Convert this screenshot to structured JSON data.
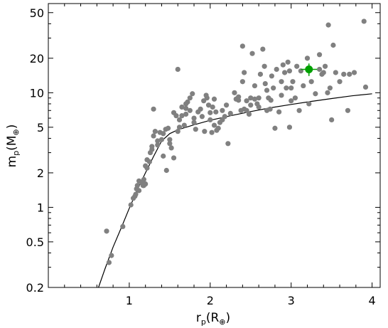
{
  "chart_data": {
    "type": "scatter",
    "title": "",
    "xlabel": {
      "main": "r",
      "sub": "p",
      "unit_open": "(R",
      "unit_sub": "⊕",
      "unit_close": ")"
    },
    "ylabel": {
      "main": "m",
      "sub": "p",
      "unit_open": "(M",
      "unit_sub": "⊕",
      "unit_close": ")"
    },
    "xlim": [
      0,
      4.1
    ],
    "ylim": [
      0.2,
      60
    ],
    "yscale": "log",
    "x_ticks": [
      1,
      2,
      3,
      4
    ],
    "x_tick_labels": [
      "1",
      "2",
      "3",
      "4"
    ],
    "y_ticks": [
      0.2,
      0.5,
      1,
      2,
      5,
      10,
      20,
      50
    ],
    "y_tick_labels": [
      "0.2",
      "0.5",
      "1",
      "2",
      "5",
      "10",
      "20",
      "50"
    ],
    "grid": false,
    "legend": "none",
    "colors": {
      "points": "#808080",
      "highlight": "#00a000",
      "curve": "#000000",
      "axes": "#000000"
    },
    "series": [
      {
        "kind": "points",
        "points": [
          [
            0.72,
            0.62
          ],
          [
            0.75,
            0.33
          ],
          [
            0.78,
            0.38
          ],
          [
            0.92,
            0.68
          ],
          [
            1.02,
            1.05
          ],
          [
            1.05,
            1.2
          ],
          [
            1.07,
            1.25
          ],
          [
            1.09,
            1.45
          ],
          [
            1.1,
            1.55
          ],
          [
            1.12,
            1.7
          ],
          [
            1.15,
            1.65
          ],
          [
            1.17,
            1.55
          ],
          [
            1.18,
            1.75
          ],
          [
            1.2,
            2.3
          ],
          [
            1.22,
            2.2
          ],
          [
            1.25,
            2.5
          ],
          [
            1.26,
            3.0
          ],
          [
            1.28,
            3.4
          ],
          [
            1.3,
            4.2
          ],
          [
            1.32,
            4.6
          ],
          [
            1.3,
            7.2
          ],
          [
            1.35,
            3.8
          ],
          [
            1.38,
            4.5
          ],
          [
            1.4,
            3.9
          ],
          [
            1.42,
            4.4
          ],
          [
            1.45,
            4.8
          ],
          [
            1.48,
            4.9
          ],
          [
            1.46,
            2.1
          ],
          [
            1.5,
            3.6
          ],
          [
            1.52,
            3.3
          ],
          [
            1.55,
            2.7
          ],
          [
            1.58,
            6.3
          ],
          [
            1.6,
            16.0
          ],
          [
            1.6,
            4.6
          ],
          [
            1.62,
            5.0
          ],
          [
            1.62,
            5.8
          ],
          [
            1.65,
            6.3
          ],
          [
            1.65,
            7.5
          ],
          [
            1.68,
            5.2
          ],
          [
            1.7,
            6.5
          ],
          [
            1.7,
            8.0
          ],
          [
            1.72,
            8.3
          ],
          [
            1.75,
            7.0
          ],
          [
            1.75,
            9.0
          ],
          [
            1.78,
            9.8
          ],
          [
            1.8,
            5.5
          ],
          [
            1.82,
            4.8
          ],
          [
            1.85,
            6.8
          ],
          [
            1.88,
            7.2
          ],
          [
            1.9,
            6.2
          ],
          [
            1.92,
            8.5
          ],
          [
            1.95,
            9.5
          ],
          [
            1.96,
            9.0
          ],
          [
            1.98,
            7.8
          ],
          [
            2.0,
            5.8
          ],
          [
            2.02,
            4.5
          ],
          [
            2.03,
            7.5
          ],
          [
            2.05,
            5.2
          ],
          [
            2.07,
            6.8
          ],
          [
            2.08,
            4.7
          ],
          [
            2.1,
            4.9
          ],
          [
            2.12,
            5.5
          ],
          [
            2.15,
            7.0
          ],
          [
            2.18,
            6.2
          ],
          [
            2.2,
            7.8
          ],
          [
            2.22,
            3.6
          ],
          [
            2.3,
            10.0
          ],
          [
            2.32,
            8.8
          ],
          [
            2.35,
            9.2
          ],
          [
            2.38,
            7.0
          ],
          [
            2.4,
            12.5
          ],
          [
            2.4,
            25.5
          ],
          [
            2.42,
            15.0
          ],
          [
            2.45,
            8.5
          ],
          [
            2.48,
            6.5
          ],
          [
            2.5,
            9.0
          ],
          [
            2.52,
            22.0
          ],
          [
            2.55,
            11.5
          ],
          [
            2.58,
            8.0
          ],
          [
            2.6,
            7.5
          ],
          [
            2.62,
            14.5
          ],
          [
            2.65,
            24.0
          ],
          [
            2.67,
            17.0
          ],
          [
            2.68,
            12.0
          ],
          [
            2.7,
            10.5
          ],
          [
            2.72,
            9.0
          ],
          [
            2.74,
            7.2
          ],
          [
            2.76,
            14.0
          ],
          [
            2.78,
            11.0
          ],
          [
            2.8,
            4.9
          ],
          [
            2.82,
            16.0
          ],
          [
            2.85,
            6.8
          ],
          [
            2.88,
            12.5
          ],
          [
            2.9,
            17.5
          ],
          [
            2.92,
            15.0
          ],
          [
            2.94,
            11.0
          ],
          [
            2.96,
            18.5
          ],
          [
            2.98,
            5.0
          ],
          [
            3.0,
            11.0
          ],
          [
            3.02,
            12.5
          ],
          [
            3.05,
            9.0
          ],
          [
            3.07,
            17.0
          ],
          [
            3.1,
            7.0
          ],
          [
            3.12,
            15.5
          ],
          [
            3.15,
            11.5
          ],
          [
            3.2,
            20.0
          ],
          [
            3.22,
            8.0
          ],
          [
            3.25,
            12.5
          ],
          [
            3.3,
            9.8
          ],
          [
            3.35,
            21.5
          ],
          [
            3.38,
            14.5
          ],
          [
            3.4,
            15.0
          ],
          [
            3.42,
            17.0
          ],
          [
            3.45,
            10.0
          ],
          [
            3.46,
            39.0
          ],
          [
            3.48,
            11.0
          ],
          [
            3.5,
            5.8
          ],
          [
            3.52,
            26.0
          ],
          [
            3.55,
            15.0
          ],
          [
            3.6,
            12.5
          ],
          [
            3.65,
            14.5
          ],
          [
            3.7,
            7.0
          ],
          [
            3.72,
            14.5
          ],
          [
            3.78,
            15.0
          ],
          [
            3.9,
            42.0
          ],
          [
            3.92,
            11.2
          ],
          [
            1.12,
            1.4
          ],
          [
            1.2,
            1.6
          ],
          [
            1.35,
            3.5
          ],
          [
            1.5,
            3.9
          ],
          [
            1.8,
            6.0
          ],
          [
            2.0,
            6.7
          ],
          [
            2.25,
            6.6
          ],
          [
            2.45,
            7.0
          ],
          [
            2.55,
            8.8
          ],
          [
            2.7,
            7.0
          ],
          [
            2.88,
            9.5
          ],
          [
            3.0,
            8.5
          ],
          [
            2.6,
            9.0
          ],
          [
            2.5,
            7.8
          ],
          [
            2.35,
            8.6
          ],
          [
            2.15,
            5.8
          ],
          [
            1.93,
            4.6
          ],
          [
            1.7,
            7.3
          ],
          [
            1.55,
            6.7
          ],
          [
            1.42,
            2.8
          ],
          [
            1.28,
            3.2
          ],
          [
            1.22,
            2.6
          ],
          [
            1.18,
            1.55
          ],
          [
            1.08,
            1.3
          ],
          [
            2.75,
            8.6
          ],
          [
            2.42,
            7.2
          ],
          [
            3.35,
            16.0
          ],
          [
            2.98,
            15.5
          ],
          [
            2.05,
            8.8
          ]
        ]
      },
      {
        "kind": "curve",
        "points": [
          [
            0.62,
            0.2
          ],
          [
            0.7,
            0.29
          ],
          [
            0.8,
            0.45
          ],
          [
            0.9,
            0.66
          ],
          [
            1.0,
            0.98
          ],
          [
            1.1,
            1.42
          ],
          [
            1.2,
            2.0
          ],
          [
            1.3,
            2.78
          ],
          [
            1.4,
            3.8
          ],
          [
            1.5,
            4.4
          ],
          [
            1.6,
            4.75
          ],
          [
            1.8,
            5.25
          ],
          [
            2.0,
            5.75
          ],
          [
            2.25,
            6.3
          ],
          [
            2.5,
            6.85
          ],
          [
            2.75,
            7.4
          ],
          [
            3.0,
            7.9
          ],
          [
            3.25,
            8.4
          ],
          [
            3.5,
            8.9
          ],
          [
            3.75,
            9.4
          ],
          [
            4.0,
            9.8
          ]
        ]
      },
      {
        "kind": "highlight",
        "point": [
          3.22,
          16.0
        ],
        "x_err": 0.1,
        "y_err": 2.0
      }
    ]
  }
}
